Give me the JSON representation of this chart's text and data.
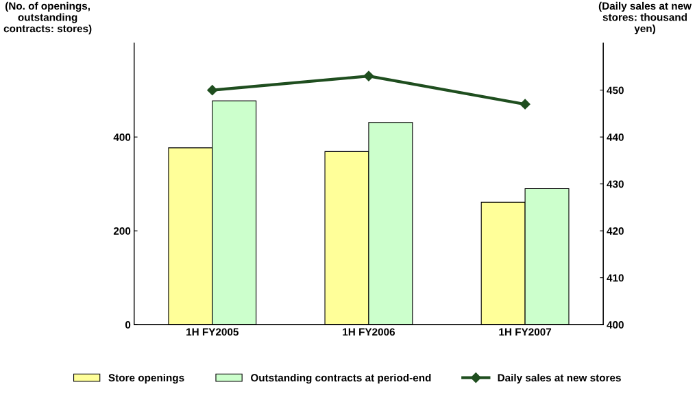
{
  "chart_data": {
    "type": "bar",
    "ylabel": "(No. of openings,\noutstanding\ncontracts: stores)",
    "y2label": "(Daily sales at new\nstores: thousand\nyen)",
    "categories": [
      "1H FY2005",
      "1H FY2006",
      "1H FY2007"
    ],
    "series": [
      {
        "name": "Store openings",
        "color": "#ffff99",
        "values": [
          377,
          369,
          261
        ]
      },
      {
        "name": "Outstanding contracts at period-end",
        "color": "#ccffcc",
        "values": [
          477,
          431,
          290
        ]
      },
      {
        "name": "Daily sales at new stores",
        "type": "line",
        "axis": "y2",
        "color": "#1f4e1f",
        "marker": "diamond",
        "values": [
          450,
          453,
          447
        ]
      }
    ],
    "ylim": [
      0,
      600
    ],
    "yticks": [
      0,
      200,
      400
    ],
    "y2lim": [
      400,
      460
    ],
    "y2ticks": [
      400,
      410,
      420,
      430,
      440,
      450
    ],
    "grid": false,
    "legend": "bottom"
  }
}
